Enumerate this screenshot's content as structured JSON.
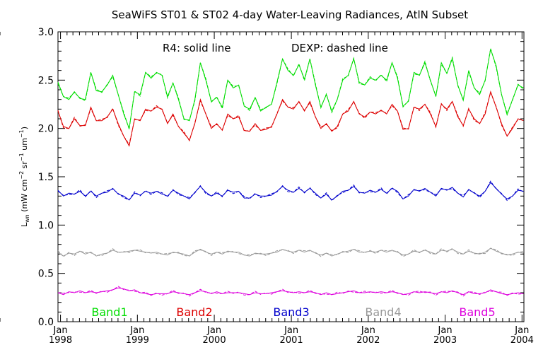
{
  "chart_data": {
    "type": "line",
    "title": "SeaWiFS ST01 & ST02 4-day Water-Leaving Radiances, AtlN Subset",
    "annotations": {
      "solid": "R4: solid line",
      "dashed": "DEXP: dashed line"
    },
    "ylabel": "L_wn (mW cm^-2 sr^-1 um^-1)",
    "ylabel_parts": {
      "main": "L",
      "sub": "wn",
      "units_open": " (mW cm",
      "exp1": "−2",
      "mid1": " sr",
      "exp2": "−1",
      "mid2": " um",
      "exp3": "−1",
      "units_close": ")"
    },
    "ylim": [
      0,
      3.0
    ],
    "yticks": [
      "0.0",
      "0.5",
      "1.0",
      "1.5",
      "2.0",
      "2.5",
      "3.0"
    ],
    "xlim": [
      "1997-12-20",
      "2004-01-10"
    ],
    "xticks": [
      {
        "date": "1998-01-01",
        "month": "Jan",
        "year": "1998"
      },
      {
        "date": "1999-01-01",
        "month": "Jan",
        "year": "1999"
      },
      {
        "date": "2000-01-01",
        "month": "Jan",
        "year": "2000"
      },
      {
        "date": "2001-01-01",
        "month": "Jan",
        "year": "2001"
      },
      {
        "date": "2002-01-01",
        "month": "Jan",
        "year": "2002"
      },
      {
        "date": "2003-01-01",
        "month": "Jan",
        "year": "2003"
      },
      {
        "date": "2004-01-01",
        "month": "Jan",
        "year": "2004"
      }
    ],
    "x": [
      "1997-12-20",
      "1998-01-15",
      "1998-02-10",
      "1998-03-08",
      "1998-04-03",
      "1998-04-29",
      "1998-05-25",
      "1998-06-20",
      "1998-07-16",
      "1998-08-11",
      "1998-09-06",
      "1998-10-02",
      "1998-10-28",
      "1998-11-23",
      "1998-12-19",
      "1999-01-14",
      "1999-02-09",
      "1999-03-07",
      "1999-04-02",
      "1999-04-28",
      "1999-05-24",
      "1999-06-19",
      "1999-07-15",
      "1999-08-10",
      "1999-09-05",
      "1999-10-01",
      "1999-10-27",
      "1999-11-22",
      "1999-12-18",
      "2000-01-13",
      "2000-02-08",
      "2000-03-05",
      "2000-03-31",
      "2000-04-26",
      "2000-05-22",
      "2000-06-17",
      "2000-07-13",
      "2000-08-08",
      "2000-09-03",
      "2000-09-29",
      "2000-10-25",
      "2000-11-20",
      "2000-12-16",
      "2001-01-11",
      "2001-02-06",
      "2001-03-04",
      "2001-03-30",
      "2001-04-25",
      "2001-05-21",
      "2001-06-16",
      "2001-07-12",
      "2001-08-07",
      "2001-09-02",
      "2001-09-28",
      "2001-10-24",
      "2001-11-19",
      "2001-12-15",
      "2002-01-10",
      "2002-02-05",
      "2002-03-03",
      "2002-03-29",
      "2002-04-24",
      "2002-05-20",
      "2002-06-15",
      "2002-07-11",
      "2002-08-06",
      "2002-09-01",
      "2002-09-27",
      "2002-10-23",
      "2002-11-18",
      "2002-12-14",
      "2003-01-09",
      "2003-02-04",
      "2003-03-02",
      "2003-03-28",
      "2003-04-23",
      "2003-05-19",
      "2003-06-14",
      "2003-07-10",
      "2003-08-05",
      "2003-08-31",
      "2003-09-26",
      "2003-10-22",
      "2003-11-17",
      "2003-12-13",
      "2004-01-08"
    ],
    "series": [
      {
        "name": "Band1",
        "color": "#00dd00",
        "values": [
          2.48,
          2.33,
          2.3,
          2.38,
          2.31,
          2.3,
          2.58,
          2.39,
          2.38,
          2.45,
          2.55,
          2.35,
          2.15,
          2.0,
          2.38,
          2.35,
          2.58,
          2.52,
          2.58,
          2.55,
          2.33,
          2.47,
          2.3,
          2.1,
          2.08,
          2.3,
          2.68,
          2.5,
          2.28,
          2.32,
          2.22,
          2.5,
          2.42,
          2.45,
          2.23,
          2.2,
          2.32,
          2.18,
          2.22,
          2.25,
          2.48,
          2.72,
          2.6,
          2.55,
          2.66,
          2.51,
          2.72,
          2.45,
          2.22,
          2.35,
          2.18,
          2.3,
          2.5,
          2.55,
          2.72,
          2.48,
          2.45,
          2.52,
          2.5,
          2.55,
          2.5,
          2.68,
          2.52,
          2.23,
          2.28,
          2.58,
          2.55,
          2.68,
          2.5,
          2.33,
          2.68,
          2.57,
          2.72,
          2.45,
          2.29,
          2.6,
          2.42,
          2.35,
          2.5,
          2.82,
          2.65,
          2.35,
          2.14,
          2.3,
          2.45,
          2.42
        ]
      },
      {
        "name": "Band2",
        "color": "#dd0000",
        "values": [
          2.18,
          2.02,
          2.0,
          2.1,
          2.03,
          2.03,
          2.22,
          2.08,
          2.08,
          2.12,
          2.2,
          2.05,
          1.92,
          1.82,
          2.1,
          2.08,
          2.2,
          2.18,
          2.22,
          2.2,
          2.05,
          2.15,
          2.02,
          1.95,
          1.88,
          2.05,
          2.3,
          2.15,
          2.0,
          2.05,
          1.98,
          2.15,
          2.1,
          2.12,
          1.98,
          1.97,
          2.05,
          1.98,
          1.99,
          2.02,
          2.15,
          2.3,
          2.22,
          2.2,
          2.28,
          2.18,
          2.28,
          2.12,
          2.0,
          2.05,
          1.97,
          2.02,
          2.15,
          2.18,
          2.28,
          2.15,
          2.12,
          2.17,
          2.15,
          2.19,
          2.15,
          2.25,
          2.18,
          1.99,
          2.0,
          2.22,
          2.2,
          2.25,
          2.15,
          2.02,
          2.25,
          2.2,
          2.28,
          2.12,
          2.03,
          2.2,
          2.1,
          2.05,
          2.15,
          2.38,
          2.22,
          2.05,
          1.92,
          2.0,
          2.1,
          2.08
        ]
      },
      {
        "name": "Band3",
        "color": "#0000cc",
        "values": [
          1.36,
          1.3,
          1.33,
          1.32,
          1.35,
          1.3,
          1.35,
          1.3,
          1.33,
          1.34,
          1.38,
          1.32,
          1.3,
          1.26,
          1.33,
          1.31,
          1.35,
          1.33,
          1.35,
          1.32,
          1.3,
          1.36,
          1.33,
          1.3,
          1.27,
          1.34,
          1.4,
          1.34,
          1.3,
          1.33,
          1.3,
          1.36,
          1.34,
          1.35,
          1.28,
          1.28,
          1.32,
          1.3,
          1.3,
          1.31,
          1.35,
          1.4,
          1.36,
          1.34,
          1.38,
          1.34,
          1.38,
          1.33,
          1.28,
          1.32,
          1.26,
          1.3,
          1.35,
          1.36,
          1.4,
          1.34,
          1.33,
          1.36,
          1.34,
          1.37,
          1.33,
          1.38,
          1.35,
          1.27,
          1.3,
          1.37,
          1.35,
          1.38,
          1.34,
          1.3,
          1.38,
          1.36,
          1.39,
          1.33,
          1.29,
          1.37,
          1.33,
          1.3,
          1.35,
          1.44,
          1.38,
          1.32,
          1.27,
          1.3,
          1.36,
          1.35
        ]
      },
      {
        "name": "Band4",
        "color": "#999999",
        "values": [
          0.72,
          0.68,
          0.71,
          0.7,
          0.73,
          0.7,
          0.72,
          0.68,
          0.7,
          0.71,
          0.74,
          0.72,
          0.72,
          0.73,
          0.74,
          0.73,
          0.72,
          0.71,
          0.72,
          0.7,
          0.69,
          0.72,
          0.71,
          0.7,
          0.68,
          0.72,
          0.75,
          0.72,
          0.7,
          0.72,
          0.7,
          0.73,
          0.72,
          0.72,
          0.69,
          0.68,
          0.71,
          0.7,
          0.7,
          0.71,
          0.72,
          0.75,
          0.73,
          0.72,
          0.74,
          0.72,
          0.74,
          0.71,
          0.69,
          0.71,
          0.68,
          0.7,
          0.72,
          0.73,
          0.75,
          0.72,
          0.72,
          0.73,
          0.72,
          0.74,
          0.72,
          0.74,
          0.72,
          0.69,
          0.7,
          0.73,
          0.72,
          0.74,
          0.72,
          0.7,
          0.74,
          0.73,
          0.75,
          0.72,
          0.7,
          0.73,
          0.71,
          0.7,
          0.72,
          0.76,
          0.73,
          0.71,
          0.69,
          0.7,
          0.72,
          0.71
        ]
      },
      {
        "name": "Band5",
        "color": "#dd00dd",
        "values": [
          0.3,
          0.28,
          0.31,
          0.3,
          0.32,
          0.3,
          0.31,
          0.3,
          0.31,
          0.32,
          0.33,
          0.35,
          0.34,
          0.32,
          0.33,
          0.3,
          0.29,
          0.28,
          0.29,
          0.29,
          0.29,
          0.31,
          0.3,
          0.29,
          0.28,
          0.3,
          0.32,
          0.31,
          0.29,
          0.31,
          0.29,
          0.3,
          0.3,
          0.3,
          0.29,
          0.28,
          0.3,
          0.29,
          0.29,
          0.3,
          0.31,
          0.32,
          0.31,
          0.3,
          0.31,
          0.3,
          0.31,
          0.3,
          0.28,
          0.3,
          0.28,
          0.29,
          0.3,
          0.31,
          0.32,
          0.3,
          0.3,
          0.31,
          0.3,
          0.31,
          0.3,
          0.31,
          0.3,
          0.28,
          0.29,
          0.31,
          0.3,
          0.31,
          0.3,
          0.29,
          0.31,
          0.3,
          0.32,
          0.3,
          0.28,
          0.31,
          0.29,
          0.29,
          0.3,
          0.33,
          0.31,
          0.29,
          0.28,
          0.29,
          0.3,
          0.29
        ]
      }
    ],
    "dashed_offset": 0.015,
    "legend_placement": "bottom-inside",
    "grid": false
  }
}
